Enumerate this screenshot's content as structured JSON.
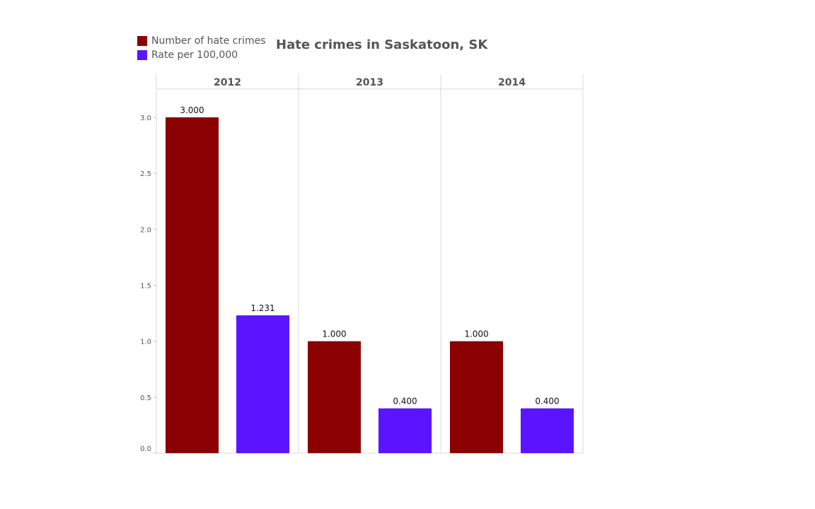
{
  "chart_data": {
    "type": "bar",
    "title": "Hate crimes in Saskatoon, SK",
    "categories": [
      "2012",
      "2013",
      "2014"
    ],
    "series": [
      {
        "name": "Number of hate crimes",
        "color": "#8b0000",
        "values": [
          3.0,
          1.0,
          1.0
        ],
        "labels": [
          "3.000",
          "1.000",
          "1.000"
        ]
      },
      {
        "name": "Rate per 100,000",
        "color": "#5a14ff",
        "values": [
          1.231,
          0.4,
          0.4
        ],
        "labels": [
          "1.231",
          "0.400",
          "0.400"
        ]
      }
    ],
    "yticks": [
      "0.0",
      "0.5",
      "1.0",
      "1.5",
      "2.0",
      "2.5",
      "3.0"
    ],
    "ylim": [
      0,
      3.3
    ],
    "xlabel": "",
    "ylabel": "",
    "legend_position": "top-left"
  }
}
